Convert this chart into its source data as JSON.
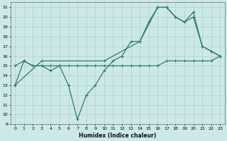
{
  "xlabel": "Humidex (Indice chaleur)",
  "line1_x": [
    0,
    1,
    2,
    3,
    4,
    5,
    6,
    7,
    8,
    9,
    10,
    11,
    12,
    13,
    14,
    15,
    16,
    17,
    18,
    19,
    20,
    21,
    22,
    23
  ],
  "line1_y": [
    13,
    15.5,
    15,
    15,
    14.5,
    15,
    13,
    9.5,
    12,
    13,
    14.5,
    15.5,
    16,
    17.5,
    17.5,
    19.5,
    21,
    21,
    20,
    19.5,
    20,
    17,
    16.5,
    16
  ],
  "line2_x": [
    0,
    1,
    2,
    3,
    4,
    5,
    6,
    7,
    8,
    9,
    10,
    11,
    12,
    13,
    14,
    15,
    16,
    17,
    18,
    19,
    20,
    21,
    22,
    23
  ],
  "line2_y": [
    15,
    15.5,
    15,
    15,
    15,
    15,
    15,
    15,
    15,
    15,
    15,
    15,
    15,
    15,
    15,
    15,
    15,
    15.5,
    15.5,
    15.5,
    15.5,
    15.5,
    15.5,
    16
  ],
  "line3_x": [
    0,
    3,
    10,
    14,
    16,
    17,
    18,
    19,
    20,
    21,
    22,
    23
  ],
  "line3_y": [
    13,
    15.5,
    15.5,
    17.5,
    21,
    21,
    20,
    19.5,
    20.5,
    17,
    16.5,
    16
  ],
  "line_color": "#2e7d6e",
  "bg_color": "#cce8e8",
  "grid_color": "#aacccc",
  "ylim": [
    9,
    21.5
  ],
  "xlim": [
    -0.5,
    23.5
  ],
  "yticks": [
    9,
    10,
    11,
    12,
    13,
    14,
    15,
    16,
    17,
    18,
    19,
    20,
    21
  ],
  "xticks": [
    0,
    1,
    2,
    3,
    4,
    5,
    6,
    7,
    8,
    9,
    10,
    11,
    12,
    13,
    14,
    15,
    16,
    17,
    18,
    19,
    20,
    21,
    22,
    23
  ]
}
